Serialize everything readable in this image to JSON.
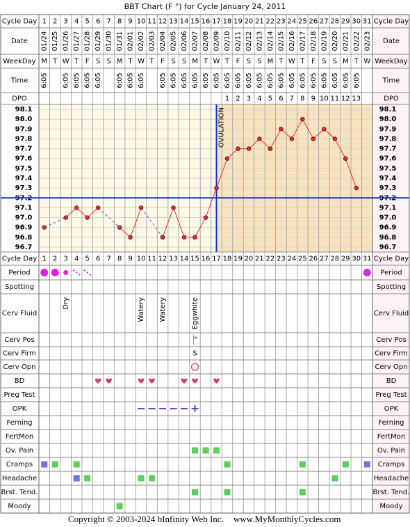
{
  "title": "BBT Chart (F °) for Cycle January 24, 2011",
  "row_labels": {
    "cycle_day": "Cycle Day",
    "date": "Date",
    "weekday": "WeekDay",
    "time": "Time",
    "dpo": "DPO",
    "period": "Period",
    "spotting": "Spotting",
    "cerv_fluid": "Cerv Fluid",
    "cerv_pos": "Cerv Pos",
    "cerv_firm": "Cerv Firm",
    "cerv_opn": "Cerv Opn",
    "bd": "BD",
    "preg_test": "Preg Test",
    "opk": "OPK",
    "ferning": "Ferning",
    "fertmon": "FertMon",
    "ov_pain": "Ov. Pain",
    "cramps": "Cramps",
    "headache": "Headache",
    "brst_tend": "Brst. Tend.",
    "moody": "Moody"
  },
  "cycle_days": [
    1,
    2,
    3,
    4,
    5,
    6,
    7,
    8,
    9,
    10,
    11,
    12,
    13,
    14,
    15,
    16,
    17,
    18,
    19,
    20,
    21,
    22,
    23,
    24,
    25,
    26,
    27,
    28,
    29,
    30,
    31
  ],
  "dates": [
    "01/24",
    "01/25",
    "01/26",
    "01/27",
    "01/28",
    "01/29",
    "01/30",
    "01/31",
    "02/01",
    "02/02",
    "02/03",
    "02/04",
    "02/05",
    "02/06",
    "02/07",
    "02/08",
    "02/09",
    "02/10",
    "02/11",
    "02/12",
    "02/13",
    "02/14",
    "02/15",
    "02/16",
    "02/17",
    "02/18",
    "02/19",
    "02/20",
    "02/21",
    "02/22",
    "02/23"
  ],
  "weekdays": [
    "M",
    "T",
    "W",
    "T",
    "F",
    "S",
    "S",
    "M",
    "T",
    "W",
    "T",
    "F",
    "S",
    "S",
    "M",
    "T",
    "W",
    "T",
    "F",
    "S",
    "S",
    "M",
    "T",
    "W",
    "T",
    "F",
    "S",
    "S",
    "M",
    "T",
    "W"
  ],
  "times": [
    "6:05",
    null,
    "6:05",
    "6:05",
    "6:05",
    "6:05",
    null,
    "6:05",
    "6:05",
    "6:05",
    null,
    "6:05",
    "6:05",
    "6:05",
    "6:05",
    "6:05",
    "6:05",
    "6:05",
    "6:05",
    "6:05",
    "6:05",
    "6:05",
    "6:05",
    "6:05",
    "6:05",
    "6:05",
    "6:05",
    "6:05",
    "6:05",
    "6:05",
    null
  ],
  "dpo": [
    null,
    null,
    null,
    null,
    null,
    null,
    null,
    null,
    null,
    null,
    null,
    null,
    null,
    null,
    null,
    null,
    null,
    1,
    2,
    3,
    4,
    5,
    6,
    7,
    8,
    9,
    10,
    11,
    12,
    13,
    null
  ],
  "chart_data": {
    "type": "line",
    "values": [
      96.9,
      null,
      97.0,
      97.1,
      97.0,
      97.1,
      null,
      96.9,
      96.8,
      97.1,
      null,
      96.8,
      97.1,
      96.8,
      96.8,
      97.0,
      97.3,
      97.6,
      97.7,
      97.7,
      97.8,
      97.7,
      97.9,
      97.8,
      98.0,
      97.8,
      97.9,
      97.8,
      97.6,
      97.3,
      null
    ],
    "color": "#e03030",
    "gap_color": "#5566dd",
    "grid": true,
    "ylim": [
      96.65,
      98.15
    ],
    "yticks": [
      98.1,
      {
        "value": 98,
        "label": "98.0"
      },
      97.9,
      97.8,
      97.7,
      97.6,
      97.5,
      97.4,
      97.3,
      97.2,
      97.1,
      {
        "value": 97,
        "label": "97.0"
      },
      96.9,
      96.8,
      96.7
    ],
    "coverline": 97.2,
    "coverline_color": "#1133cc",
    "ovulation_day": 17,
    "annotation": "OVULATION"
  },
  "period": [
    "heavy",
    "heavy",
    "medium",
    "spotting",
    "spotting",
    null,
    null,
    null,
    null,
    null,
    null,
    null,
    null,
    null,
    null,
    null,
    null,
    null,
    null,
    null,
    null,
    null,
    null,
    null,
    null,
    null,
    null,
    null,
    null,
    null,
    "heavy"
  ],
  "cerv_fluid": [
    null,
    null,
    "Dry",
    null,
    null,
    null,
    null,
    null,
    null,
    "Watery",
    null,
    "Watery",
    null,
    null,
    "Eggwhite",
    null,
    null,
    null,
    null,
    null,
    null,
    null,
    null,
    null,
    null,
    null,
    null,
    null,
    null,
    null,
    null
  ],
  "cerv_pos_day": 15,
  "cerv_firm": {
    "day": 15,
    "label": "S"
  },
  "cerv_opn_day": 15,
  "bd": [
    6,
    7,
    10,
    11,
    14,
    15,
    17
  ],
  "opk": {
    "negative": [
      10,
      11,
      12,
      13,
      14
    ],
    "positive": [
      15
    ]
  },
  "symptoms": {
    "ov_pain": [
      {
        "day": 15,
        "color": "#5ccf5c"
      },
      {
        "day": 16,
        "color": "#5ccf5c"
      },
      {
        "day": 17,
        "color": "#5ccf5c"
      }
    ],
    "cramps": [
      {
        "day": 1,
        "color": "#6a78d8"
      },
      {
        "day": 2,
        "color": "#5ccf5c"
      },
      {
        "day": 4,
        "color": "#5ccf5c"
      },
      {
        "day": 18,
        "color": "#5ccf5c"
      },
      {
        "day": 25,
        "color": "#5ccf5c"
      },
      {
        "day": 29,
        "color": "#5ccf5c"
      },
      {
        "day": 31,
        "color": "#6a78d8"
      }
    ],
    "headache": [
      {
        "day": 4,
        "color": "#6a78d8"
      },
      {
        "day": 5,
        "color": "#5ccf5c"
      },
      {
        "day": 10,
        "color": "#5ccf5c"
      },
      {
        "day": 11,
        "color": "#5ccf5c"
      },
      {
        "day": 28,
        "color": "#5ccf5c"
      }
    ],
    "brst_tend": [
      {
        "day": 15,
        "color": "#5ccf5c"
      },
      {
        "day": 18,
        "color": "#5ccf5c"
      },
      {
        "day": 25,
        "color": "#5ccf5c"
      }
    ],
    "moody": [
      {
        "day": 8,
        "color": "#5ccf5c"
      }
    ]
  },
  "footer": {
    "copyright": "Copyright © 2003-2024 bInfinity Web Inc.",
    "site": "www.MyMonthlyCycles.com"
  }
}
